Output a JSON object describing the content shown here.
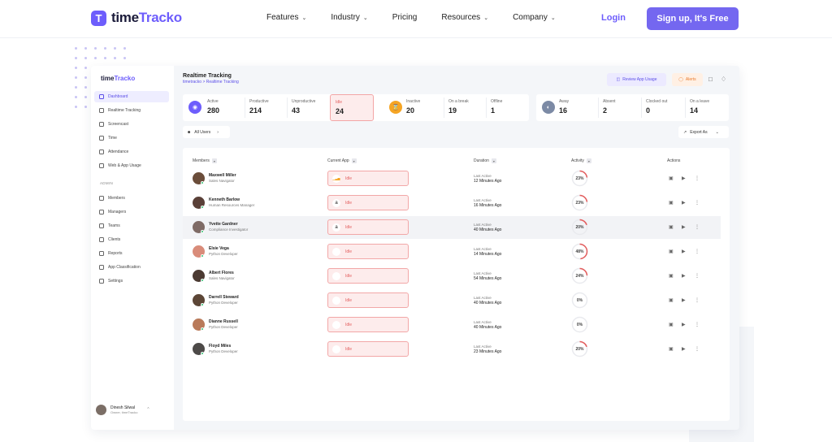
{
  "nav": {
    "brand_prefix": "time",
    "brand_suffix": "Tracko",
    "brand_mark": "T",
    "links": [
      {
        "label": "Features",
        "has_menu": true
      },
      {
        "label": "Industry",
        "has_menu": true
      },
      {
        "label": "Pricing",
        "has_menu": false
      },
      {
        "label": "Resources",
        "has_menu": true
      },
      {
        "label": "Company",
        "has_menu": true
      }
    ],
    "login": "Login",
    "signup": "Sign up, It's Free"
  },
  "colors": {
    "accent": "#6d5dfc",
    "idle": "#e35d5d",
    "alert": "#ea7a2c",
    "online": "#2fbf71"
  },
  "app": {
    "logo_prefix": "time",
    "logo_suffix": "Tracko",
    "sidebar": {
      "items": [
        {
          "label": "Dashboard",
          "icon": "home-icon",
          "active": true
        },
        {
          "label": "Realtime Tracking",
          "icon": "pulse-icon",
          "active": false
        },
        {
          "label": "Screencast",
          "icon": "monitor-icon",
          "active": false
        },
        {
          "label": "Time",
          "icon": "clock-icon",
          "active": false
        },
        {
          "label": "Attendance",
          "icon": "calendar-icon",
          "active": false
        },
        {
          "label": "Web & App Usage",
          "icon": "globe-icon",
          "active": false
        }
      ],
      "section_label": "ADMIN",
      "admin_items": [
        {
          "label": "Members",
          "icon": "users-icon"
        },
        {
          "label": "Managers",
          "icon": "manager-icon"
        },
        {
          "label": "Teams",
          "icon": "teams-icon"
        },
        {
          "label": "Clients",
          "icon": "briefcase-icon"
        },
        {
          "label": "Reports",
          "icon": "report-icon"
        },
        {
          "label": "App Classification",
          "icon": "grid-icon"
        },
        {
          "label": "Settings",
          "icon": "gear-icon"
        }
      ],
      "user": {
        "name": "Dinesh Silwal",
        "role": "Owner, timeTracko"
      }
    },
    "header": {
      "title": "Realtime Tracking",
      "breadcrumb": "timetracko > Realtime Tracking",
      "review_label": "Review App Usage",
      "alerts_label": "Alerts"
    },
    "stats": {
      "group1": [
        {
          "label": "Active",
          "value": "280"
        },
        {
          "label": "Productive",
          "value": "214"
        },
        {
          "label": "Unproductive",
          "value": "43"
        },
        {
          "label": "Idle",
          "value": "24"
        }
      ],
      "group2": [
        {
          "label": "Inactive",
          "value": "20"
        },
        {
          "label": "On a break",
          "value": "19"
        },
        {
          "label": "Offline",
          "value": "1"
        }
      ],
      "group3": [
        {
          "label": "Away",
          "value": "16"
        },
        {
          "label": "Absent",
          "value": "2"
        },
        {
          "label": "Clocked out",
          "value": "0"
        },
        {
          "label": "On a leave",
          "value": "14"
        }
      ]
    },
    "filters": {
      "all_users": "All Users",
      "export": "Export As"
    },
    "table": {
      "headers": {
        "members": "Members",
        "app": "Current App",
        "duration": "Duration",
        "activity": "Activity",
        "actions": "Actions"
      },
      "rows": [
        {
          "name": "Maxwell Miller",
          "role": "Sales Navigator",
          "app_icon": "bar-chart-app-icon",
          "app": "Idle",
          "dur_label": "Last Active",
          "duration": "12 Minutes Ago",
          "activity": 0.23,
          "activity_label": "23%",
          "avatar": "#6b4d3a"
        },
        {
          "name": "Kenneth Barlow",
          "role": "Human Resources Manager",
          "app_icon": "amazon-app-icon",
          "app": "Idle",
          "dur_label": "Last Active",
          "duration": "16 Minutes Ago",
          "activity": 0.23,
          "activity_label": "23%",
          "avatar": "#5a4038"
        },
        {
          "name": "Yvette Gardner",
          "role": "Compliance Investigator",
          "app_icon": "amazon-app-icon",
          "app": "Idle",
          "dur_label": "Last Active",
          "duration": "40 Minutes Ago",
          "activity": 0.2,
          "activity_label": "20%",
          "avatar": "#7f6b66"
        },
        {
          "name": "Elsie Vega",
          "role": "Python Developer",
          "app_icon": "",
          "app": "Idle",
          "dur_label": "Last Active",
          "duration": "14 Minutes Ago",
          "activity": 0.48,
          "activity_label": "48%",
          "avatar": "#d98c7a"
        },
        {
          "name": "Albert Flores",
          "role": "Sales Navigator",
          "app_icon": "",
          "app": "Idle",
          "dur_label": "Last Active",
          "duration": "54 Minutes Ago",
          "activity": 0.24,
          "activity_label": "24%",
          "avatar": "#4b3a32"
        },
        {
          "name": "Darrell Steward",
          "role": "Python Developer",
          "app_icon": "",
          "app": "Idle",
          "dur_label": "Last Active",
          "duration": "40 Minutes Ago",
          "activity": 0,
          "activity_label": "0%",
          "avatar": "#5c4636"
        },
        {
          "name": "Dianne Russell",
          "role": "Python Developer",
          "app_icon": "",
          "app": "Idle",
          "dur_label": "Last Active",
          "duration": "40 Minutes Ago",
          "activity": 0,
          "activity_label": "0%",
          "avatar": "#b97a5a"
        },
        {
          "name": "Floyd Miles",
          "role": "Python Developer",
          "app_icon": "",
          "app": "Idle",
          "dur_label": "Last Active",
          "duration": "23 Minutes Ago",
          "activity": 0.2,
          "activity_label": "20%",
          "avatar": "#4d4a48"
        }
      ]
    }
  }
}
